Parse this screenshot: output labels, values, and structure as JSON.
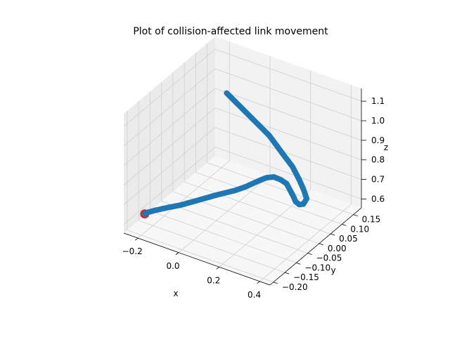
{
  "chart_data": {
    "type": "scatter",
    "projection": "3d",
    "title": "Plot of collision-affected link movement",
    "xlabel": "x",
    "ylabel": "y",
    "zlabel": "z",
    "grid": true,
    "colors": {
      "series": "#1f77b4",
      "start_marker": "#d62728",
      "pane_left": "#ebebeb",
      "pane_right": "#f2f2f2",
      "pane_floor": "#f7f7f7",
      "grid": "#cfcfcf"
    },
    "x_ticks": [
      {
        "value": -0.2,
        "label": "−0.2"
      },
      {
        "value": 0.0,
        "label": "0.0"
      },
      {
        "value": 0.2,
        "label": "0.2"
      },
      {
        "value": 0.4,
        "label": "0.4"
      }
    ],
    "y_ticks": [
      {
        "value": -0.2,
        "label": "−0.20"
      },
      {
        "value": -0.15,
        "label": "−0.15"
      },
      {
        "value": -0.1,
        "label": "−0.10"
      },
      {
        "value": -0.05,
        "label": "−0.05"
      },
      {
        "value": 0.0,
        "label": "0.00"
      },
      {
        "value": 0.05,
        "label": "0.05"
      },
      {
        "value": 0.1,
        "label": "0.10"
      },
      {
        "value": 0.15,
        "label": "0.15"
      }
    ],
    "z_ticks": [
      {
        "value": 0.6,
        "label": "0.6"
      },
      {
        "value": 0.7,
        "label": "0.7"
      },
      {
        "value": 0.8,
        "label": "0.8"
      },
      {
        "value": 0.9,
        "label": "0.9"
      },
      {
        "value": 1.0,
        "label": "1.0"
      },
      {
        "value": 1.1,
        "label": "1.1"
      }
    ],
    "start_point": {
      "x": -0.24,
      "y": -0.15,
      "z": 0.6
    },
    "series": [
      {
        "points": [
          {
            "x": -0.24,
            "y": -0.15,
            "z": 0.6
          },
          {
            "x": -0.235,
            "y": -0.14,
            "z": 0.6
          },
          {
            "x": -0.22,
            "y": -0.125,
            "z": 0.6
          },
          {
            "x": -0.19,
            "y": -0.1,
            "z": 0.6
          },
          {
            "x": -0.15,
            "y": -0.07,
            "z": 0.6
          },
          {
            "x": -0.1,
            "y": -0.035,
            "z": 0.61
          },
          {
            "x": -0.05,
            "y": 0.0,
            "z": 0.62
          },
          {
            "x": 0.0,
            "y": 0.03,
            "z": 0.63
          },
          {
            "x": 0.03,
            "y": 0.05,
            "z": 0.64
          },
          {
            "x": 0.05,
            "y": 0.065,
            "z": 0.65
          },
          {
            "x": 0.07,
            "y": 0.08,
            "z": 0.66
          },
          {
            "x": 0.09,
            "y": 0.09,
            "z": 0.67
          },
          {
            "x": 0.12,
            "y": 0.095,
            "z": 0.68
          },
          {
            "x": 0.16,
            "y": 0.09,
            "z": 0.685
          },
          {
            "x": 0.2,
            "y": 0.08,
            "z": 0.69
          },
          {
            "x": 0.24,
            "y": 0.06,
            "z": 0.69
          },
          {
            "x": 0.28,
            "y": 0.04,
            "z": 0.69
          },
          {
            "x": 0.3,
            "y": 0.03,
            "z": 0.685
          },
          {
            "x": 0.33,
            "y": 0.02,
            "z": 0.69
          },
          {
            "x": 0.35,
            "y": 0.02,
            "z": 0.7
          },
          {
            "x": 0.355,
            "y": 0.03,
            "z": 0.72
          },
          {
            "x": 0.34,
            "y": 0.03,
            "z": 0.76
          },
          {
            "x": 0.32,
            "y": 0.03,
            "z": 0.8
          },
          {
            "x": 0.28,
            "y": 0.035,
            "z": 0.85
          },
          {
            "x": 0.23,
            "y": 0.035,
            "z": 0.9
          },
          {
            "x": 0.16,
            "y": 0.04,
            "z": 0.96
          },
          {
            "x": 0.1,
            "y": 0.04,
            "z": 1.0
          },
          {
            "x": 0.04,
            "y": 0.04,
            "z": 1.04
          },
          {
            "x": -0.02,
            "y": 0.04,
            "z": 1.08
          },
          {
            "x": -0.05,
            "y": 0.04,
            "z": 1.1
          }
        ]
      }
    ]
  }
}
